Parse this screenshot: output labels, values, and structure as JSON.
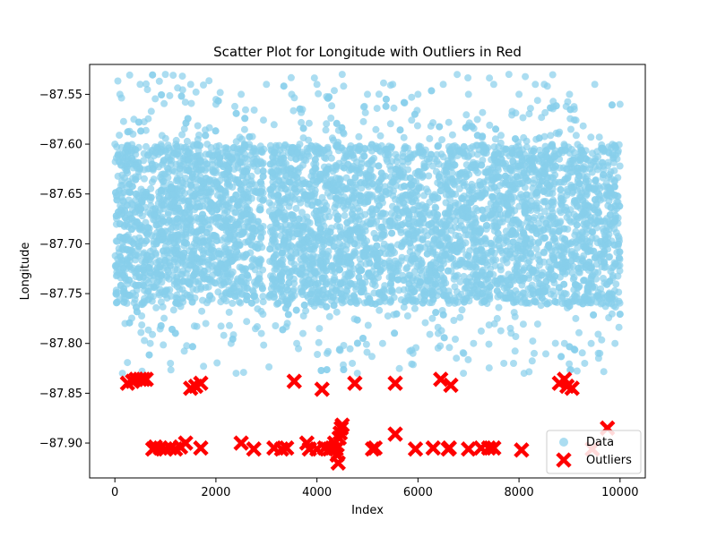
{
  "chart_data": {
    "type": "scatter",
    "title": "Scatter Plot for Longitude with Outliers in Red",
    "xlabel": "Index",
    "ylabel": "Longitude",
    "xlim": [
      -500,
      10500
    ],
    "ylim": [
      -87.935,
      -87.52
    ],
    "xticks": [
      0,
      2000,
      4000,
      6000,
      8000,
      10000
    ],
    "xtick_labels": [
      "0",
      "2000",
      "4000",
      "6000",
      "8000",
      "10000"
    ],
    "yticks": [
      -87.55,
      -87.6,
      -87.65,
      -87.7,
      -87.75,
      -87.8,
      -87.85,
      -87.9
    ],
    "ytick_labels": [
      "−87.55",
      "−87.60",
      "−87.65",
      "−87.70",
      "−87.75",
      "−87.80",
      "−87.85",
      "−87.90"
    ],
    "grid": false,
    "legend_position": "lower-right",
    "series": [
      {
        "name": "Data",
        "color": "#87ceeb",
        "marker": "circle",
        "summary": {
          "x_range": [
            0,
            10000
          ],
          "y_core": [
            -87.76,
            -87.6
          ],
          "y_extent": [
            -87.83,
            -87.53
          ]
        },
        "sample_points": [
          [
            0,
            -87.6
          ],
          [
            100,
            -87.55
          ],
          [
            500,
            -87.54
          ],
          [
            1000,
            -87.53
          ],
          [
            1500,
            -87.54
          ],
          [
            2000,
            -87.56
          ],
          [
            2500,
            -87.55
          ],
          [
            3000,
            -87.54
          ],
          [
            3500,
            -87.55
          ],
          [
            4000,
            -87.54
          ],
          [
            4500,
            -87.53
          ],
          [
            5000,
            -87.55
          ],
          [
            5500,
            -87.54
          ],
          [
            6000,
            -87.55
          ],
          [
            6500,
            -87.54
          ],
          [
            7000,
            -87.55
          ],
          [
            7500,
            -87.54
          ],
          [
            7800,
            -87.53
          ],
          [
            8000,
            -87.55
          ],
          [
            8500,
            -87.54
          ],
          [
            9000,
            -87.55
          ],
          [
            9500,
            -87.54
          ],
          [
            10000,
            -87.56
          ],
          [
            200,
            -87.78
          ],
          [
            700,
            -87.8
          ],
          [
            1200,
            -87.79
          ],
          [
            1800,
            -87.78
          ],
          [
            2300,
            -87.8
          ],
          [
            2900,
            -87.79
          ],
          [
            3600,
            -87.8
          ],
          [
            4200,
            -87.81
          ],
          [
            4700,
            -87.82
          ],
          [
            5300,
            -87.8
          ],
          [
            5900,
            -87.81
          ],
          [
            6400,
            -87.79
          ],
          [
            7100,
            -87.8
          ],
          [
            7700,
            -87.82
          ],
          [
            8300,
            -87.81
          ],
          [
            8900,
            -87.8
          ],
          [
            9600,
            -87.81
          ],
          [
            9900,
            -87.8
          ],
          [
            150,
            -87.83
          ],
          [
            1100,
            -87.82
          ],
          [
            2400,
            -87.83
          ],
          [
            4800,
            -87.83
          ],
          [
            6900,
            -87.83
          ],
          [
            8100,
            -87.83
          ],
          [
            9300,
            -87.82
          ]
        ]
      },
      {
        "name": "Outliers",
        "color": "#ff0000",
        "marker": "x",
        "points": [
          [
            250,
            -87.84
          ],
          [
            350,
            -87.838
          ],
          [
            420,
            -87.836
          ],
          [
            500,
            -87.836
          ],
          [
            560,
            -87.836
          ],
          [
            620,
            -87.836
          ],
          [
            1500,
            -87.845
          ],
          [
            1600,
            -87.843
          ],
          [
            1700,
            -87.84
          ],
          [
            3550,
            -87.838
          ],
          [
            4100,
            -87.846
          ],
          [
            4750,
            -87.84
          ],
          [
            5550,
            -87.84
          ],
          [
            6450,
            -87.836
          ],
          [
            6650,
            -87.842
          ],
          [
            8800,
            -87.84
          ],
          [
            8900,
            -87.836
          ],
          [
            8950,
            -87.843
          ],
          [
            9050,
            -87.845
          ],
          [
            750,
            -87.906
          ],
          [
            800,
            -87.904
          ],
          [
            900,
            -87.905
          ],
          [
            1000,
            -87.906
          ],
          [
            1100,
            -87.905
          ],
          [
            1200,
            -87.906
          ],
          [
            1300,
            -87.904
          ],
          [
            1400,
            -87.9
          ],
          [
            1700,
            -87.905
          ],
          [
            2500,
            -87.9
          ],
          [
            2750,
            -87.906
          ],
          [
            3150,
            -87.905
          ],
          [
            3300,
            -87.906
          ],
          [
            3400,
            -87.905
          ],
          [
            3800,
            -87.9
          ],
          [
            3850,
            -87.906
          ],
          [
            4000,
            -87.906
          ],
          [
            4150,
            -87.905
          ],
          [
            4250,
            -87.906
          ],
          [
            4300,
            -87.905
          ],
          [
            4350,
            -87.9
          ],
          [
            4380,
            -87.906
          ],
          [
            4400,
            -87.912
          ],
          [
            4420,
            -87.92
          ],
          [
            4440,
            -87.895
          ],
          [
            4460,
            -87.89
          ],
          [
            4480,
            -87.885
          ],
          [
            4500,
            -87.882
          ],
          [
            5100,
            -87.906
          ],
          [
            5150,
            -87.905
          ],
          [
            5550,
            -87.891
          ],
          [
            5950,
            -87.906
          ],
          [
            6300,
            -87.905
          ],
          [
            6600,
            -87.906
          ],
          [
            6620,
            -87.905
          ],
          [
            7000,
            -87.906
          ],
          [
            7250,
            -87.905
          ],
          [
            7400,
            -87.905
          ],
          [
            7500,
            -87.905
          ],
          [
            8050,
            -87.907
          ],
          [
            9450,
            -87.906
          ],
          [
            9750,
            -87.885
          ]
        ]
      }
    ]
  }
}
